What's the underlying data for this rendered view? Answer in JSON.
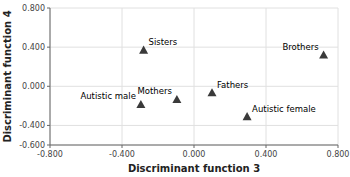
{
  "chart_data": {
    "type": "scatter",
    "x_label": "Discriminant function 3",
    "y_label": "Discriminant function 4",
    "x": [
      -0.28,
      0.72,
      -0.295,
      -0.095,
      0.1,
      0.295
    ],
    "values": [
      0.37,
      0.32,
      -0.185,
      -0.135,
      -0.065,
      -0.31
    ],
    "labels": [
      "Sisters",
      "Brothers",
      "Autistic male",
      "Mothers",
      "Fathers",
      "Autistic female"
    ],
    "color": "#3a3a3a",
    "marker": "triangle",
    "xlim": [
      -0.8,
      0.8
    ],
    "ylim": [
      -0.6,
      0.8
    ],
    "xticks": [
      {
        "value": -0.8,
        "label": "-0.800"
      },
      {
        "value": -0.4,
        "label": "-0.400"
      },
      {
        "value": 0,
        "label": "0.000"
      },
      {
        "value": 0.4,
        "label": "0.400"
      },
      {
        "value": 0.8,
        "label": "0.800"
      }
    ],
    "yticks": [
      {
        "value": -0.6,
        "label": "-0.600"
      },
      {
        "value": -0.4,
        "label": "-0.400"
      },
      {
        "value": 0,
        "label": "0.000"
      },
      {
        "value": 0.4,
        "label": "0.400"
      },
      {
        "value": 0.8,
        "label": "0.800"
      }
    ],
    "grid": true
  }
}
